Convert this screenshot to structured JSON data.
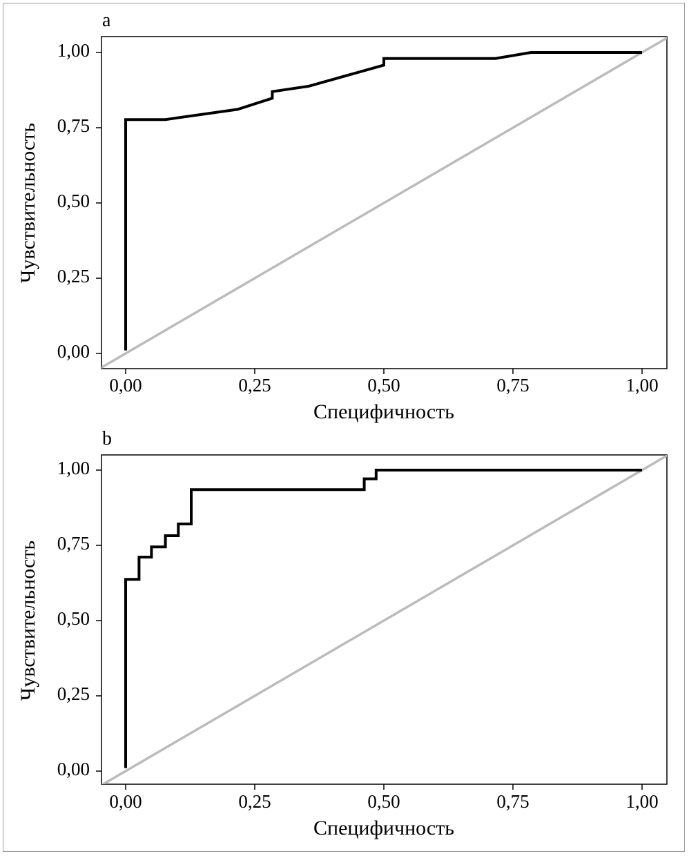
{
  "chart_data": [
    {
      "type": "line",
      "panel_label": "a",
      "xlabel": "Специфичность",
      "ylabel": "Чувствительность",
      "xlim": [
        -0.045,
        1.05
      ],
      "ylim": [
        -0.05,
        1.05
      ],
      "x_ticks": [
        0,
        0.25,
        0.5,
        0.75,
        1
      ],
      "x_tick_labels": [
        "0,00",
        "0,25",
        "0,50",
        "0,75",
        "1,00"
      ],
      "y_ticks": [
        0,
        0.25,
        0.5,
        0.75,
        1
      ],
      "y_tick_labels": [
        "0,00",
        "0,25",
        "0,50",
        "0,75",
        "1,00"
      ],
      "grid": false,
      "reference_line": {
        "name": "diagonal",
        "color": "#bbbbbb",
        "from": [
          -0.05,
          -0.05
        ],
        "to": [
          1.05,
          1.05
        ]
      },
      "series": [
        {
          "name": "ROC",
          "color": "#000000",
          "x": [
            0,
            0,
            0.077,
            0.217,
            0.284,
            0.284,
            0.355,
            0.5,
            0.5,
            0.716,
            0.785,
            1.0
          ],
          "y": [
            0.01,
            0.777,
            0.777,
            0.811,
            0.848,
            0.87,
            0.888,
            0.958,
            0.98,
            0.98,
            1.0,
            1.0
          ]
        }
      ]
    },
    {
      "type": "line",
      "panel_label": "b",
      "xlabel": "Специфичность",
      "ylabel": "Чувствительность",
      "xlim": [
        -0.045,
        1.05
      ],
      "ylim": [
        -0.05,
        1.05
      ],
      "x_ticks": [
        0,
        0.25,
        0.5,
        0.75,
        1
      ],
      "x_tick_labels": [
        "0,00",
        "0,25",
        "0,50",
        "0,75",
        "1,00"
      ],
      "y_ticks": [
        0,
        0.25,
        0.5,
        0.75,
        1
      ],
      "y_tick_labels": [
        "0,00",
        "0,25",
        "0,50",
        "0,75",
        "1,00"
      ],
      "grid": false,
      "reference_line": {
        "name": "diagonal",
        "color": "#bbbbbb",
        "from": [
          -0.05,
          -0.05
        ],
        "to": [
          1.05,
          1.05
        ]
      },
      "series": [
        {
          "name": "ROC",
          "color": "#000000",
          "x": [
            0,
            0,
            0.026,
            0.026,
            0.05,
            0.05,
            0.077,
            0.077,
            0.102,
            0.102,
            0.127,
            0.127,
            0.462,
            0.462,
            0.485,
            0.485,
            1.0
          ],
          "y": [
            0.01,
            0.637,
            0.637,
            0.711,
            0.711,
            0.745,
            0.745,
            0.782,
            0.782,
            0.821,
            0.821,
            0.935,
            0.935,
            0.971,
            0.971,
            1.0,
            1.0
          ]
        }
      ]
    }
  ]
}
